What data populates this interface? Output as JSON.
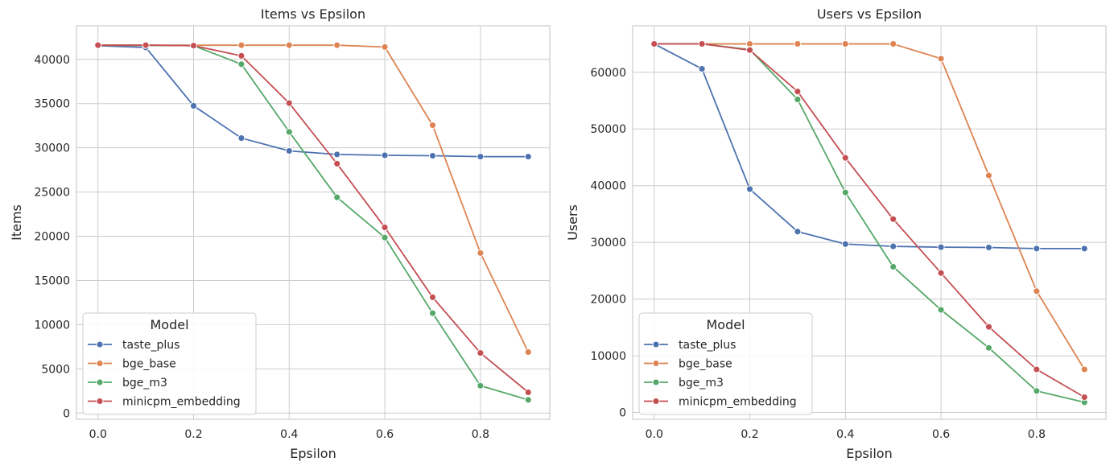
{
  "chart_data": [
    {
      "type": "line",
      "title": "Items vs Epsilon",
      "xlabel": "Epsilon",
      "ylabel": "Items",
      "xlim": [
        -0.045,
        0.945
      ],
      "ylim": [
        -700,
        43800
      ],
      "xticks": [
        0.0,
        0.2,
        0.4,
        0.6,
        0.8
      ],
      "xtick_labels": [
        "0.0",
        "0.2",
        "0.4",
        "0.6",
        "0.8"
      ],
      "yticks": [
        0,
        5000,
        10000,
        15000,
        20000,
        25000,
        30000,
        35000,
        40000
      ],
      "ytick_labels": [
        "0",
        "5000",
        "10000",
        "15000",
        "20000",
        "25000",
        "30000",
        "35000",
        "40000"
      ],
      "grid": true,
      "legend": {
        "title": "Model",
        "placement": "lower-left"
      },
      "x": [
        0.0,
        0.1,
        0.2,
        0.3,
        0.4,
        0.5,
        0.6,
        0.7,
        0.8,
        0.9
      ],
      "series": [
        {
          "name": "taste_plus",
          "color": "#4c72b0",
          "values": [
            41550,
            41350,
            34750,
            31100,
            29650,
            29250,
            29150,
            29100,
            29000,
            29000
          ]
        },
        {
          "name": "bge_base",
          "color": "#dd8452",
          "values": [
            41600,
            41600,
            41600,
            41600,
            41600,
            41600,
            41400,
            32550,
            18100,
            6900
          ]
        },
        {
          "name": "bge_m3",
          "color": "#55a868",
          "values": [
            41600,
            41600,
            41550,
            39450,
            31800,
            24400,
            19850,
            11300,
            3100,
            1500
          ]
        },
        {
          "name": "minicpm_embedding",
          "color": "#c44e52",
          "values": [
            41600,
            41600,
            41550,
            40400,
            35050,
            28200,
            21000,
            13100,
            6800,
            2350
          ]
        }
      ]
    },
    {
      "type": "line",
      "title": "Users vs Epsilon",
      "xlabel": "Epsilon",
      "ylabel": "Users",
      "xlim": [
        -0.045,
        0.945
      ],
      "ylim": [
        -1200,
        68200
      ],
      "xticks": [
        0.0,
        0.2,
        0.4,
        0.6,
        0.8
      ],
      "xtick_labels": [
        "0.0",
        "0.2",
        "0.4",
        "0.6",
        "0.8"
      ],
      "yticks": [
        0,
        10000,
        20000,
        30000,
        40000,
        50000,
        60000
      ],
      "ytick_labels": [
        "0",
        "10000",
        "20000",
        "30000",
        "40000",
        "50000",
        "60000"
      ],
      "grid": true,
      "legend": {
        "title": "Model",
        "placement": "lower-left"
      },
      "x": [
        0.0,
        0.1,
        0.2,
        0.3,
        0.4,
        0.5,
        0.6,
        0.7,
        0.8,
        0.9
      ],
      "series": [
        {
          "name": "taste_plus",
          "color": "#4c72b0",
          "values": [
            65000,
            60600,
            39400,
            31900,
            29700,
            29300,
            29150,
            29100,
            28900,
            28900
          ]
        },
        {
          "name": "bge_base",
          "color": "#dd8452",
          "values": [
            65000,
            65000,
            65000,
            65000,
            65000,
            65000,
            62400,
            41800,
            21400,
            7600
          ]
        },
        {
          "name": "bge_m3",
          "color": "#55a868",
          "values": [
            65000,
            65000,
            64000,
            55200,
            38800,
            25700,
            18100,
            11400,
            3800,
            1800
          ]
        },
        {
          "name": "minicpm_embedding",
          "color": "#c44e52",
          "values": [
            65000,
            65000,
            63900,
            56600,
            44900,
            34100,
            24600,
            15100,
            7600,
            2700
          ]
        }
      ]
    }
  ]
}
